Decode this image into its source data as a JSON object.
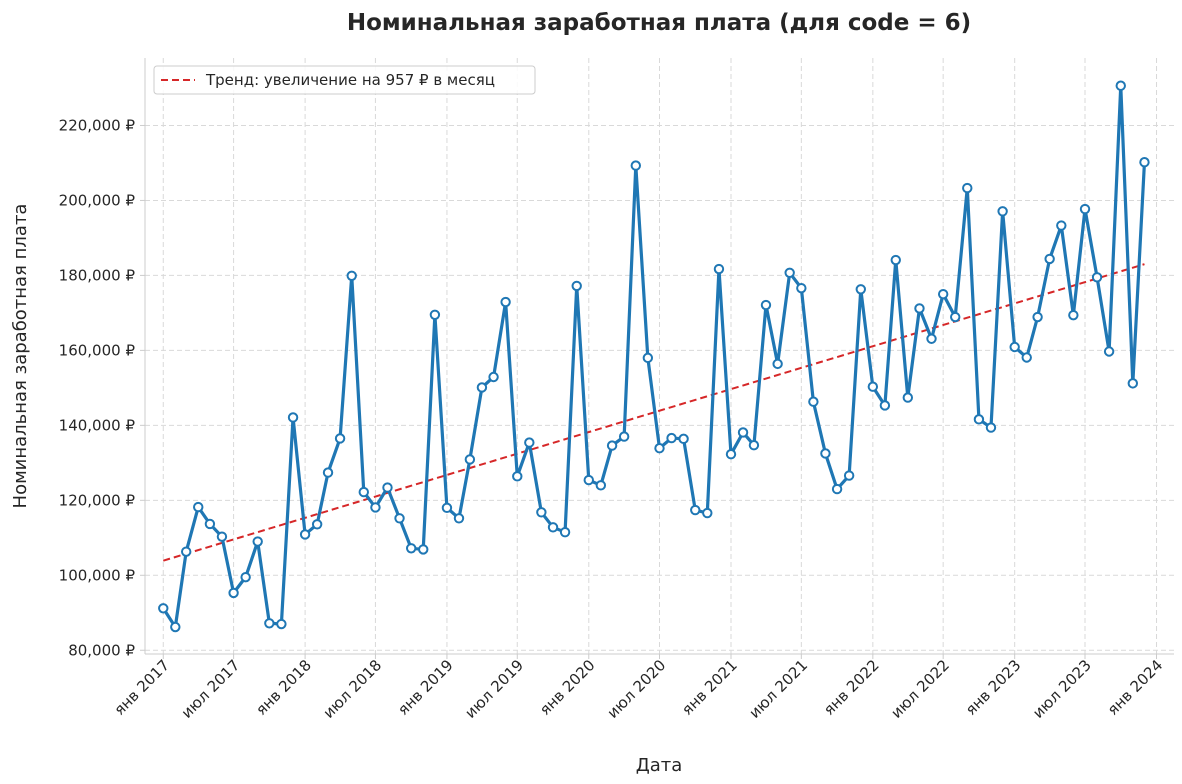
{
  "chart_data": {
    "type": "line",
    "title": "Номинальная заработная плата (для code = 6)",
    "xlabel": "Дата",
    "ylabel": "Номинальная заработная плата",
    "x_ticks": [
      "янв 2017",
      "июл 2017",
      "янв 2018",
      "июл 2018",
      "янв 2019",
      "июл 2019",
      "янв 2020",
      "июл 2020",
      "янв 2021",
      "июл 2021",
      "янв 2022",
      "июл 2022",
      "янв 2023",
      "июл 2023",
      "янв 2024"
    ],
    "y_ticks": [
      "80,000 ₽",
      "100,000 ₽",
      "120,000 ₽",
      "140,000 ₽",
      "160,000 ₽",
      "180,000 ₽",
      "200,000 ₽",
      "220,000 ₽"
    ],
    "ylim": [
      79000,
      238000
    ],
    "xlim": [
      "2016-11-15",
      "2024-02-15"
    ],
    "grid": true,
    "legend_position": "top-left",
    "x": [
      "2017-01",
      "2017-02",
      "2017-03",
      "2017-04",
      "2017-05",
      "2017-06",
      "2017-07",
      "2017-08",
      "2017-09",
      "2017-10",
      "2017-11",
      "2017-12",
      "2018-01",
      "2018-02",
      "2018-03",
      "2018-04",
      "2018-05",
      "2018-06",
      "2018-07",
      "2018-08",
      "2018-09",
      "2018-10",
      "2018-11",
      "2018-12",
      "2019-01",
      "2019-02",
      "2019-03",
      "2019-04",
      "2019-05",
      "2019-06",
      "2019-07",
      "2019-08",
      "2019-09",
      "2019-10",
      "2019-11",
      "2019-12",
      "2020-01",
      "2020-02",
      "2020-03",
      "2020-04",
      "2020-05",
      "2020-06",
      "2020-07",
      "2020-08",
      "2020-09",
      "2020-10",
      "2020-11",
      "2020-12",
      "2021-01",
      "2021-02",
      "2021-03",
      "2021-04",
      "2021-05",
      "2021-06",
      "2021-07",
      "2021-08",
      "2021-09",
      "2021-10",
      "2021-11",
      "2021-12",
      "2022-01",
      "2022-02",
      "2022-03",
      "2022-04",
      "2022-05",
      "2022-06",
      "2022-07",
      "2022-08",
      "2022-09",
      "2022-10",
      "2022-11",
      "2022-12",
      "2023-01",
      "2023-02",
      "2023-03",
      "2023-04",
      "2023-05",
      "2023-06",
      "2023-07",
      "2023-08",
      "2023-09",
      "2023-10",
      "2023-11",
      "2023-12"
    ],
    "series": [
      {
        "color": "#1f77b4",
        "marker": "circle",
        "values": [
          91200,
          86200,
          106300,
          118200,
          113700,
          110300,
          95300,
          99500,
          109000,
          87200,
          87000,
          142100,
          110900,
          113600,
          127400,
          136500,
          179900,
          122200,
          118100,
          123400,
          115200,
          107200,
          106900,
          169500,
          118000,
          115200,
          130900,
          150100,
          152900,
          172900,
          126400,
          135400,
          116800,
          112800,
          111500,
          177200,
          125400,
          124000,
          134600,
          137000,
          209300,
          158000,
          133900,
          136600,
          136400,
          117400,
          116600,
          181700,
          132300,
          138100,
          134700,
          172100,
          156400,
          180700,
          176600,
          146300,
          132500,
          123000,
          126600,
          176300,
          150300,
          145300,
          184100,
          147400,
          171200,
          163100,
          175000,
          168900,
          203300,
          141600,
          139400,
          197100,
          160900,
          158100,
          168900,
          184400,
          193300,
          169400,
          197700,
          179500,
          159700,
          230600,
          151200,
          210200
        ]
      }
    ],
    "trend": {
      "name": "Тренд: увеличение на 957 ₽ в месяц",
      "color": "#d62728",
      "style": "dashed",
      "start": {
        "x": "2017-01",
        "y": 103900
      },
      "end": {
        "x": "2023-12",
        "y": 183000
      }
    }
  }
}
